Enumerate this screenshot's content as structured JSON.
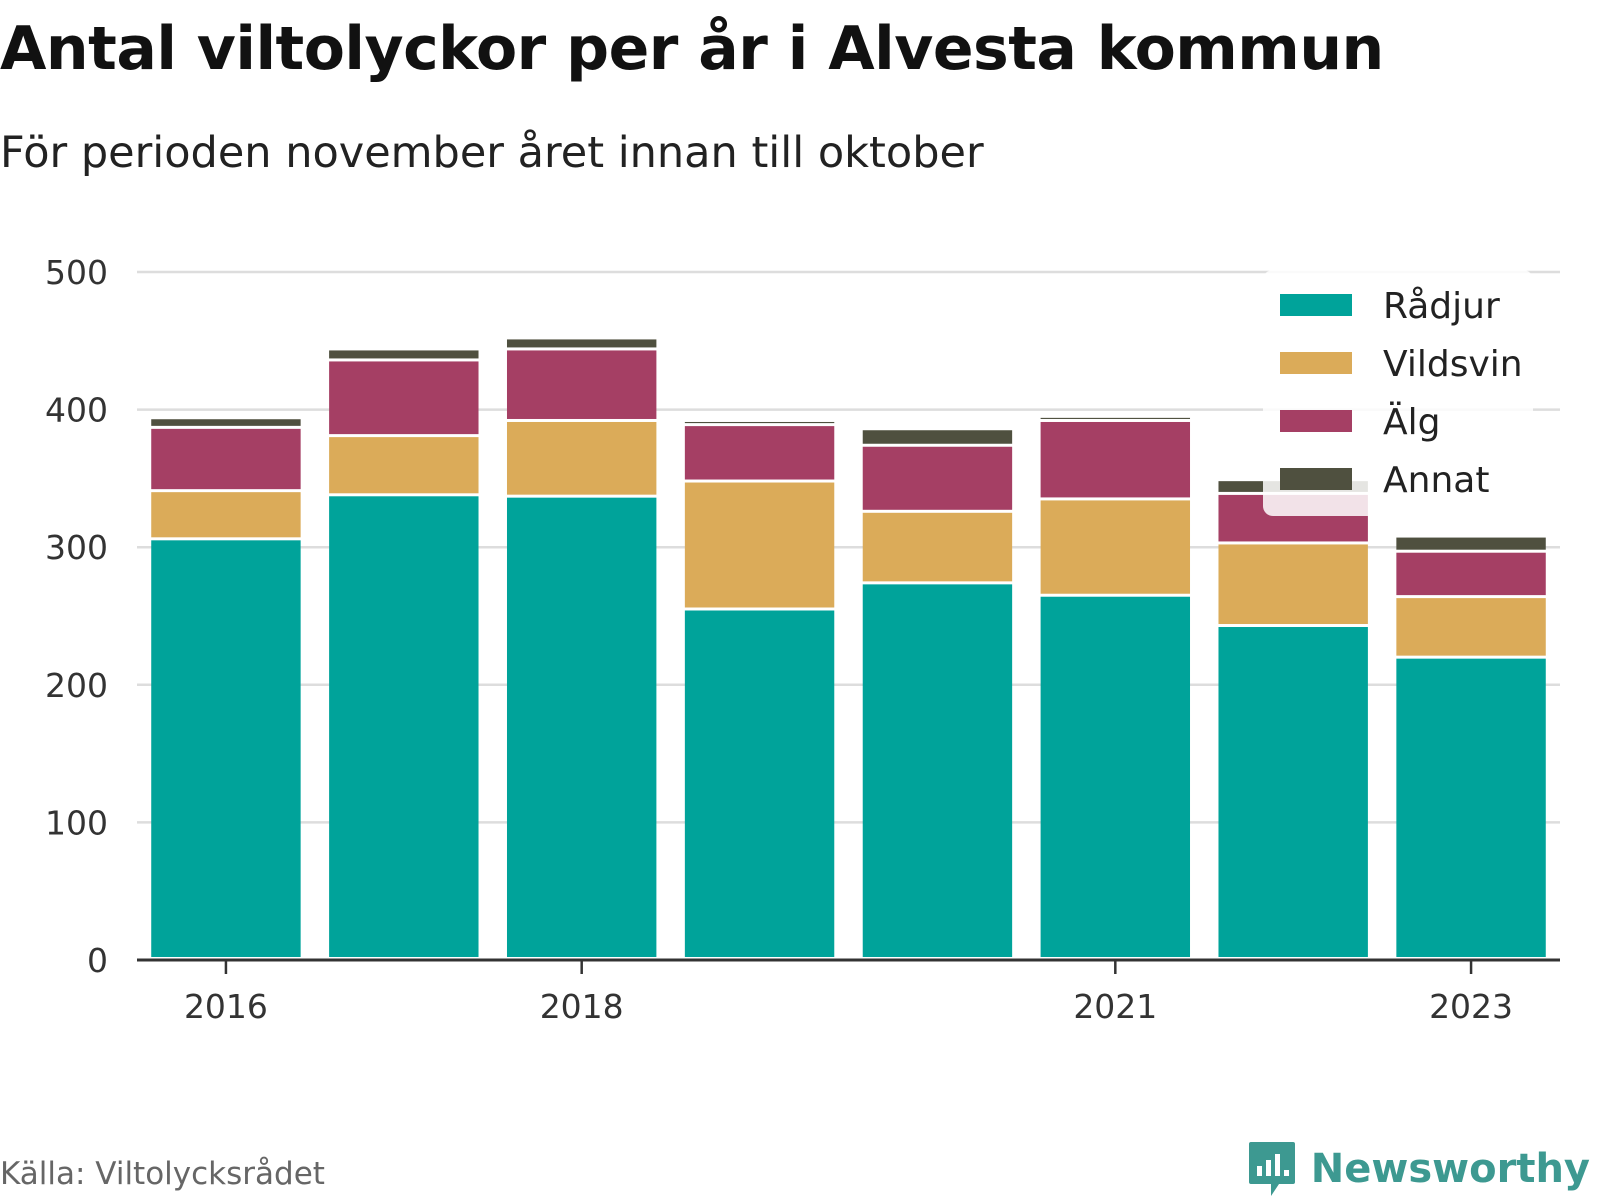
{
  "chart_data": {
    "type": "bar",
    "stacked": true,
    "title": "Antal viltolyckor per år i Alvesta kommun",
    "subtitle": "För perioden november året innan till oktober",
    "categories": [
      "2016",
      "2017",
      "2018",
      "2019",
      "2020",
      "2021",
      "2022",
      "2023"
    ],
    "x_tick_labels": [
      "2016",
      "",
      "2018",
      "",
      "",
      "2021",
      "",
      "2023"
    ],
    "series": [
      {
        "name": "Rådjur",
        "color": "#00a39a",
        "values": [
          305,
          337,
          336,
          254,
          273,
          264,
          242,
          219
        ]
      },
      {
        "name": "Vildsvin",
        "color": "#dbab59",
        "values": [
          35,
          43,
          55,
          93,
          52,
          70,
          60,
          44
        ]
      },
      {
        "name": "Älg",
        "color": "#a53f64",
        "values": [
          46,
          55,
          52,
          41,
          48,
          57,
          36,
          33
        ]
      },
      {
        "name": "Annat",
        "color": "#4f503f",
        "values": [
          7,
          8,
          8,
          3,
          12,
          3,
          10,
          11
        ]
      }
    ],
    "ylim": [
      0,
      500
    ],
    "y_ticks": [
      0,
      100,
      200,
      300,
      400,
      500
    ],
    "grid": true,
    "legend_position": "top-right",
    "xlabel": "",
    "ylabel": ""
  },
  "footer": {
    "source": "Källa: Viltolycksrådet",
    "brand": "Newsworthy",
    "brand_icon": "newsworthy-logo-icon",
    "brand_color": "#3d9991"
  }
}
